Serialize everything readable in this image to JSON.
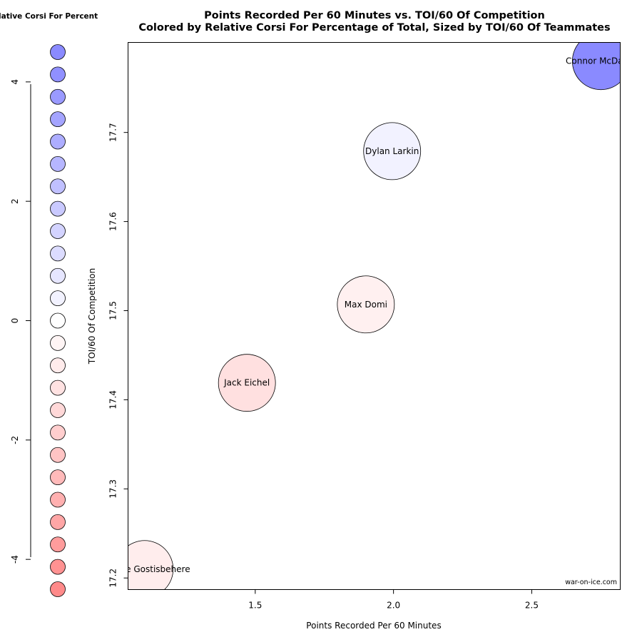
{
  "chart_data": {
    "type": "scatter",
    "title": "Points Recorded Per 60 Minutes vs. TOI/60 Of Competition",
    "subtitle": "Colored by Relative Corsi For Percentage of Total, Sized by TOI/60 Of Teammates",
    "xlabel": "Points Recorded Per 60 Minutes",
    "ylabel": "TOI/60 Of Competition",
    "xlim": [
      1.04,
      2.82
    ],
    "ylim": [
      17.187,
      17.801
    ],
    "xticks": [
      1.5,
      2.0,
      2.5
    ],
    "xtick_labels": [
      "1.5",
      "2.0",
      "2.5"
    ],
    "yticks": [
      17.2,
      17.3,
      17.4,
      17.5,
      17.6,
      17.7
    ],
    "ytick_labels": [
      "17.2",
      "17.3",
      "17.4",
      "17.5",
      "17.6",
      "17.7"
    ],
    "points": [
      {
        "label": "Connor McDavid",
        "x": 2.75,
        "y": 17.78,
        "size": 1.0,
        "color": "#8A8AFF"
      },
      {
        "label": "Dylan Larkin",
        "x": 1.995,
        "y": 17.679,
        "size": 1.0,
        "color": "#F2F2FF"
      },
      {
        "label": "Max Domi",
        "x": 1.9,
        "y": 17.507,
        "size": 1.0,
        "color": "#FFF0F0"
      },
      {
        "label": "Jack Eichel",
        "x": 1.47,
        "y": 17.419,
        "size": 1.0,
        "color": "#FFE0E0"
      },
      {
        "label": "Shayne Gostisbehere",
        "x": 1.1,
        "y": 17.21,
        "size": 1.0,
        "color": "#FFEDED"
      }
    ],
    "color_legend": {
      "title": "Relative Corsi For Percent",
      "range": [
        -4.5,
        4.5
      ],
      "ticks": [
        4,
        2,
        0,
        -2,
        -4
      ],
      "tick_labels": [
        "4",
        "2",
        "0",
        "-2",
        "-4"
      ],
      "colors": [
        "#8A8AFF",
        "#9090FF",
        "#9A9AFF",
        "#A4A4FF",
        "#ADADFF",
        "#B6B6FF",
        "#C0C0FF",
        "#C9C9FF",
        "#D3D3FF",
        "#DCDCFF",
        "#E6E6FF",
        "#F2F2FF",
        "#FFFFFF",
        "#FFF5F5",
        "#FFEBEB",
        "#FFE2E2",
        "#FFD8D8",
        "#FFCECE",
        "#FFC4C4",
        "#FFBABA",
        "#FFB0B0",
        "#FFA6A6",
        "#FF9C9C",
        "#FF9292",
        "#FF8A8A"
      ]
    },
    "watermark": "war-on-ice.com",
    "grid": false,
    "legend_position": "left"
  }
}
